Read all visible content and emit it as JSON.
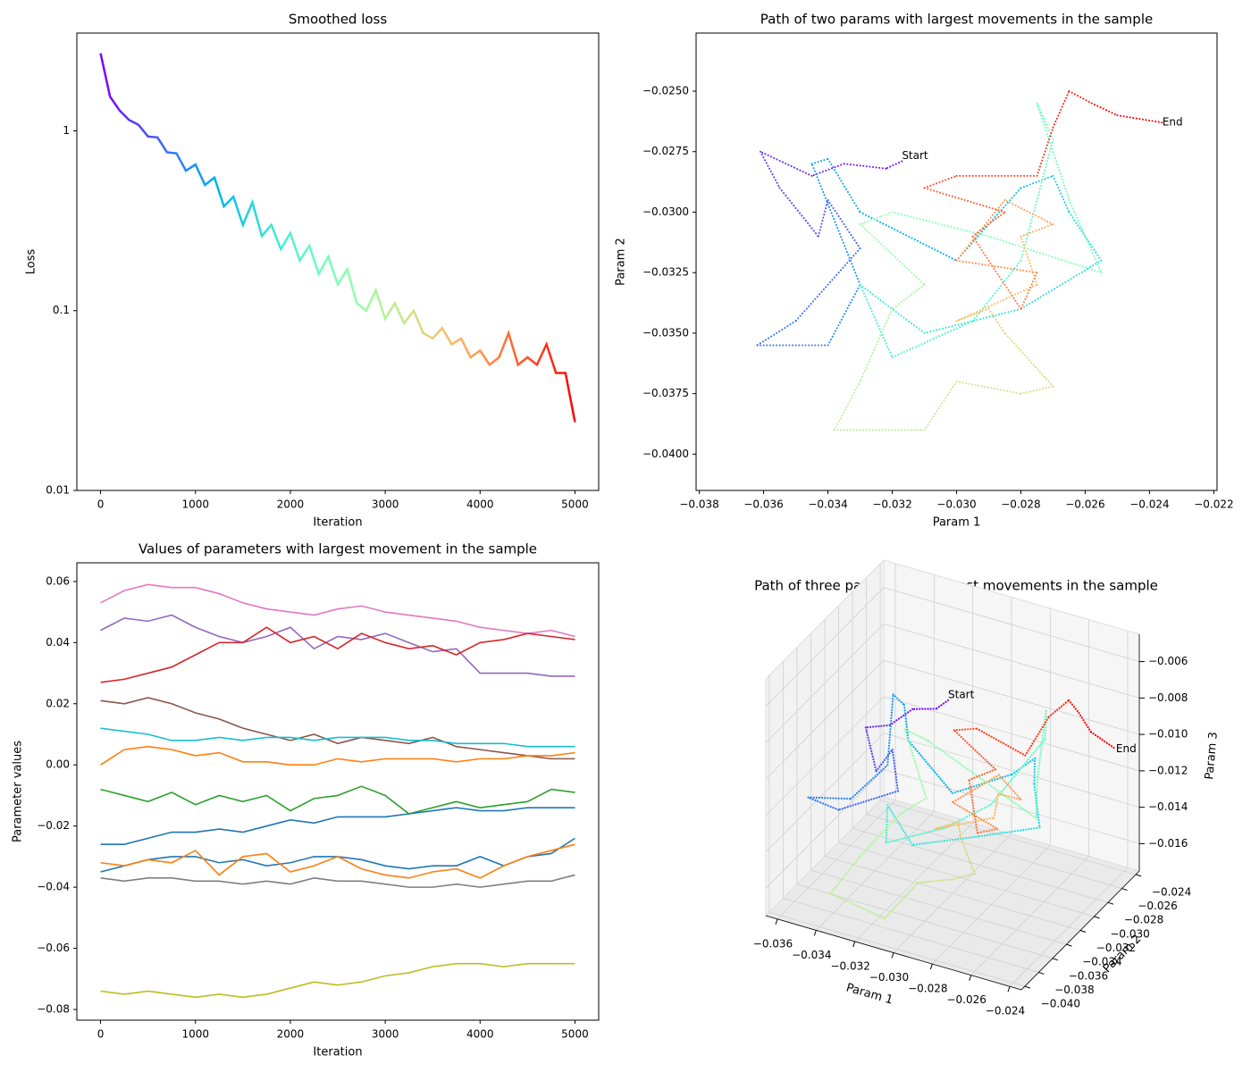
{
  "chart_data": [
    {
      "type": "line",
      "title": "Smoothed loss",
      "xlabel": "Iteration",
      "ylabel": "Loss",
      "yscale": "log",
      "colormap": "rainbow",
      "x": [
        0,
        100,
        200,
        300,
        400,
        500,
        600,
        700,
        800,
        900,
        1000,
        1100,
        1200,
        1300,
        1400,
        1500,
        1600,
        1700,
        1800,
        1900,
        2000,
        2100,
        2200,
        2300,
        2400,
        2500,
        2600,
        2700,
        2800,
        2900,
        3000,
        3100,
        3200,
        3300,
        3400,
        3500,
        3600,
        3700,
        3800,
        3900,
        4000,
        4100,
        4200,
        4300,
        4400,
        4500,
        4600,
        4700,
        4800,
        4900,
        5000
      ],
      "values": [
        2.7,
        1.55,
        1.3,
        1.15,
        1.08,
        0.93,
        0.92,
        0.76,
        0.75,
        0.6,
        0.65,
        0.5,
        0.55,
        0.38,
        0.43,
        0.3,
        0.4,
        0.26,
        0.3,
        0.22,
        0.27,
        0.19,
        0.23,
        0.16,
        0.2,
        0.14,
        0.17,
        0.11,
        0.1,
        0.13,
        0.09,
        0.11,
        0.085,
        0.1,
        0.075,
        0.07,
        0.08,
        0.065,
        0.07,
        0.055,
        0.06,
        0.05,
        0.055,
        0.075,
        0.05,
        0.055,
        0.05,
        0.065,
        0.045,
        0.045,
        0.024
      ],
      "xlim": [
        -250,
        5250
      ],
      "xticks": [
        0,
        1000,
        2000,
        3000,
        4000,
        5000
      ],
      "ylim": [
        0.01,
        3.5
      ],
      "yticks": [
        0.01,
        0.1,
        1
      ]
    },
    {
      "type": "path",
      "title": "Path of two params with largest movements in the sample",
      "xlabel": "Param 1",
      "ylabel": "Param 2",
      "colormap": "rainbow",
      "start_label": "Start",
      "end_label": "End",
      "x": [
        -0.0317,
        -0.0322,
        -0.0335,
        -0.0345,
        -0.0361,
        -0.0355,
        -0.0343,
        -0.034,
        -0.033,
        -0.035,
        -0.0362,
        -0.034,
        -0.033,
        -0.0345,
        -0.034,
        -0.033,
        -0.03,
        -0.028,
        -0.027,
        -0.0265,
        -0.0255,
        -0.028,
        -0.031,
        -0.033,
        -0.032,
        -0.0295,
        -0.028,
        -0.027,
        -0.0275,
        -0.0265,
        -0.0255,
        -0.029,
        -0.032,
        -0.033,
        -0.031,
        -0.032,
        -0.033,
        -0.0338,
        -0.031,
        -0.03,
        -0.028,
        -0.027,
        -0.0285,
        -0.029,
        -0.03,
        -0.0275,
        -0.028,
        -0.027,
        -0.0285,
        -0.03,
        -0.0275,
        -0.028,
        -0.0295,
        -0.0285,
        -0.031,
        -0.03,
        -0.0275,
        -0.027,
        -0.0265,
        -0.0258,
        -0.025,
        -0.0236
      ],
      "y": [
        -0.0279,
        -0.0282,
        -0.028,
        -0.0285,
        -0.0275,
        -0.029,
        -0.031,
        -0.0295,
        -0.0315,
        -0.0345,
        -0.0355,
        -0.0355,
        -0.033,
        -0.028,
        -0.0278,
        -0.03,
        -0.032,
        -0.029,
        -0.0285,
        -0.03,
        -0.032,
        -0.034,
        -0.035,
        -0.033,
        -0.036,
        -0.0345,
        -0.032,
        -0.027,
        -0.0255,
        -0.0295,
        -0.0325,
        -0.031,
        -0.03,
        -0.0305,
        -0.033,
        -0.034,
        -0.037,
        -0.039,
        -0.039,
        -0.037,
        -0.0375,
        -0.0372,
        -0.035,
        -0.034,
        -0.0345,
        -0.033,
        -0.031,
        -0.0305,
        -0.0295,
        -0.032,
        -0.0325,
        -0.034,
        -0.031,
        -0.03,
        -0.029,
        -0.0285,
        -0.0285,
        -0.0265,
        -0.025,
        -0.0255,
        -0.026,
        -0.0263
      ],
      "xlim": [
        -0.0381,
        -0.0219
      ],
      "xticks": [
        {
          "value": -0.038,
          "label": "−0.038"
        },
        {
          "value": -0.036,
          "label": "−0.036"
        },
        {
          "value": -0.034,
          "label": "−0.034"
        },
        {
          "value": -0.032,
          "label": "−0.032"
        },
        {
          "value": -0.03,
          "label": "−0.030"
        },
        {
          "value": -0.028,
          "label": "−0.028"
        },
        {
          "value": -0.026,
          "label": "−0.026"
        },
        {
          "value": -0.024,
          "label": "−0.024"
        },
        {
          "value": -0.022,
          "label": "−0.022"
        }
      ],
      "ylim": [
        -0.0415,
        -0.0226
      ],
      "yticks": [
        {
          "value": -0.04,
          "label": "−0.0400"
        },
        {
          "value": -0.0375,
          "label": "−0.0375"
        },
        {
          "value": -0.035,
          "label": "−0.0350"
        },
        {
          "value": -0.0325,
          "label": "−0.0325"
        },
        {
          "value": -0.03,
          "label": "−0.0300"
        },
        {
          "value": -0.0275,
          "label": "−0.0275"
        },
        {
          "value": -0.025,
          "label": "−0.0250"
        }
      ]
    },
    {
      "type": "multiline",
      "title": "Values of parameters with largest movement in the sample",
      "xlabel": "Iteration",
      "ylabel": "Parameter values",
      "x": [
        0,
        250,
        500,
        750,
        1000,
        1250,
        1500,
        1750,
        2000,
        2250,
        2500,
        2750,
        3000,
        3250,
        3500,
        3750,
        4000,
        4250,
        4500,
        4750,
        5000
      ],
      "series": [
        {
          "color": "#e377c2",
          "values": [
            0.053,
            0.057,
            0.059,
            0.058,
            0.058,
            0.056,
            0.053,
            0.051,
            0.05,
            0.049,
            0.051,
            0.052,
            0.05,
            0.049,
            0.048,
            0.047,
            0.045,
            0.044,
            0.043,
            0.044,
            0.042
          ]
        },
        {
          "color": "#9467bd",
          "values": [
            0.044,
            0.048,
            0.047,
            0.049,
            0.045,
            0.042,
            0.04,
            0.042,
            0.045,
            0.038,
            0.042,
            0.041,
            0.043,
            0.04,
            0.037,
            0.038,
            0.03,
            0.03,
            0.03,
            0.029,
            0.029
          ]
        },
        {
          "color": "#d62728",
          "values": [
            0.027,
            0.028,
            0.03,
            0.032,
            0.036,
            0.04,
            0.04,
            0.045,
            0.04,
            0.042,
            0.038,
            0.043,
            0.04,
            0.038,
            0.039,
            0.036,
            0.04,
            0.041,
            0.043,
            0.042,
            0.041
          ]
        },
        {
          "color": "#8c564b",
          "values": [
            0.021,
            0.02,
            0.022,
            0.02,
            0.017,
            0.015,
            0.012,
            0.01,
            0.008,
            0.01,
            0.007,
            0.009,
            0.008,
            0.007,
            0.009,
            0.006,
            0.005,
            0.004,
            0.003,
            0.002,
            0.002
          ]
        },
        {
          "color": "#17becf",
          "values": [
            0.012,
            0.011,
            0.01,
            0.008,
            0.008,
            0.009,
            0.008,
            0.009,
            0.009,
            0.008,
            0.009,
            0.009,
            0.009,
            0.008,
            0.008,
            0.007,
            0.007,
            0.007,
            0.006,
            0.006,
            0.006
          ]
        },
        {
          "color": "#ff7f0e",
          "values": [
            0.0,
            0.005,
            0.006,
            0.005,
            0.003,
            0.004,
            0.001,
            0.001,
            0.0,
            0.0,
            0.002,
            0.001,
            0.002,
            0.002,
            0.002,
            0.001,
            0.002,
            0.002,
            0.003,
            0.003,
            0.004
          ]
        },
        {
          "color": "#2ca02c",
          "values": [
            -0.008,
            -0.01,
            -0.012,
            -0.009,
            -0.013,
            -0.01,
            -0.012,
            -0.01,
            -0.015,
            -0.011,
            -0.01,
            -0.007,
            -0.01,
            -0.016,
            -0.014,
            -0.012,
            -0.014,
            -0.013,
            -0.012,
            -0.008,
            -0.009
          ]
        },
        {
          "color": "#1f77b4",
          "values": [
            -0.026,
            -0.026,
            -0.024,
            -0.022,
            -0.022,
            -0.021,
            -0.022,
            -0.02,
            -0.018,
            -0.019,
            -0.017,
            -0.017,
            -0.017,
            -0.016,
            -0.015,
            -0.014,
            -0.015,
            -0.015,
            -0.014,
            -0.014,
            -0.014
          ]
        },
        {
          "color": "#1f77b4",
          "values": [
            -0.035,
            -0.033,
            -0.031,
            -0.03,
            -0.03,
            -0.032,
            -0.031,
            -0.033,
            -0.032,
            -0.03,
            -0.03,
            -0.031,
            -0.033,
            -0.034,
            -0.033,
            -0.033,
            -0.03,
            -0.033,
            -0.03,
            -0.029,
            -0.024
          ]
        },
        {
          "color": "#ff7f0e",
          "values": [
            -0.032,
            -0.033,
            -0.031,
            -0.032,
            -0.028,
            -0.036,
            -0.03,
            -0.029,
            -0.035,
            -0.033,
            -0.03,
            -0.034,
            -0.036,
            -0.037,
            -0.035,
            -0.034,
            -0.037,
            -0.033,
            -0.03,
            -0.028,
            -0.026
          ]
        },
        {
          "color": "#7f7f7f",
          "values": [
            -0.037,
            -0.038,
            -0.037,
            -0.037,
            -0.038,
            -0.038,
            -0.039,
            -0.038,
            -0.039,
            -0.037,
            -0.038,
            -0.038,
            -0.039,
            -0.04,
            -0.04,
            -0.039,
            -0.04,
            -0.039,
            -0.038,
            -0.038,
            -0.036
          ]
        },
        {
          "color": "#bcbd22",
          "values": [
            -0.074,
            -0.075,
            -0.074,
            -0.075,
            -0.076,
            -0.075,
            -0.076,
            -0.075,
            -0.073,
            -0.071,
            -0.072,
            -0.071,
            -0.069,
            -0.068,
            -0.066,
            -0.065,
            -0.065,
            -0.066,
            -0.065,
            -0.065,
            -0.065
          ]
        }
      ],
      "xlim": [
        -250,
        5250
      ],
      "xticks": [
        0,
        1000,
        2000,
        3000,
        4000,
        5000
      ],
      "ylim": [
        -0.0835,
        0.0661
      ],
      "yticks": [
        {
          "value": -0.08,
          "label": "−0.08"
        },
        {
          "value": -0.06,
          "label": "−0.06"
        },
        {
          "value": -0.04,
          "label": "−0.04"
        },
        {
          "value": -0.02,
          "label": "−0.02"
        },
        {
          "value": 0,
          "label": "0.00"
        },
        0.02,
        0.04,
        0.06
      ]
    },
    {
      "type": "path3d",
      "title": "Path of three params with largest movements in the sample",
      "xlabel": "Param 1",
      "ylabel": "Param 2",
      "zlabel": "Param 3",
      "colormap": "rainbow",
      "grid": true,
      "start_label": "Start",
      "end_label": "End",
      "x": [
        -0.0317,
        -0.0322,
        -0.0335,
        -0.0345,
        -0.0361,
        -0.0355,
        -0.0343,
        -0.034,
        -0.033,
        -0.035,
        -0.0362,
        -0.034,
        -0.033,
        -0.0345,
        -0.034,
        -0.033,
        -0.03,
        -0.028,
        -0.027,
        -0.0265,
        -0.0255,
        -0.028,
        -0.031,
        -0.033,
        -0.032,
        -0.0295,
        -0.028,
        -0.027,
        -0.0275,
        -0.0265,
        -0.0255,
        -0.029,
        -0.032,
        -0.033,
        -0.031,
        -0.032,
        -0.033,
        -0.0338,
        -0.031,
        -0.03,
        -0.028,
        -0.027,
        -0.0285,
        -0.029,
        -0.03,
        -0.0275,
        -0.028,
        -0.027,
        -0.0285,
        -0.03,
        -0.0275,
        -0.028,
        -0.0295,
        -0.0285,
        -0.031,
        -0.03,
        -0.0275,
        -0.027,
        -0.0265,
        -0.0258,
        -0.025,
        -0.0236
      ],
      "y": [
        -0.0279,
        -0.0282,
        -0.028,
        -0.0285,
        -0.0275,
        -0.029,
        -0.031,
        -0.0295,
        -0.0315,
        -0.0345,
        -0.0355,
        -0.0355,
        -0.033,
        -0.028,
        -0.0278,
        -0.03,
        -0.032,
        -0.029,
        -0.0285,
        -0.03,
        -0.032,
        -0.034,
        -0.035,
        -0.033,
        -0.036,
        -0.0345,
        -0.032,
        -0.027,
        -0.0255,
        -0.0295,
        -0.0325,
        -0.031,
        -0.03,
        -0.0305,
        -0.033,
        -0.034,
        -0.037,
        -0.039,
        -0.039,
        -0.037,
        -0.0375,
        -0.0372,
        -0.035,
        -0.034,
        -0.0345,
        -0.033,
        -0.031,
        -0.0305,
        -0.0295,
        -0.032,
        -0.0325,
        -0.034,
        -0.031,
        -0.03,
        -0.029,
        -0.0285,
        -0.0285,
        -0.0265,
        -0.025,
        -0.0255,
        -0.026,
        -0.0263
      ],
      "z": [
        -0.009,
        -0.0095,
        -0.01,
        -0.011,
        -0.012,
        -0.0115,
        -0.0125,
        -0.0118,
        -0.013,
        -0.0135,
        -0.0128,
        -0.0122,
        -0.011,
        -0.0095,
        -0.01,
        -0.0108,
        -0.012,
        -0.0115,
        -0.0105,
        -0.0112,
        -0.0125,
        -0.013,
        -0.014,
        -0.0132,
        -0.0138,
        -0.0128,
        -0.012,
        -0.01,
        -0.0092,
        -0.011,
        -0.0118,
        -0.0112,
        -0.0105,
        -0.01,
        -0.0122,
        -0.013,
        -0.0145,
        -0.016,
        -0.0165,
        -0.015,
        -0.014,
        -0.0135,
        -0.0128,
        -0.0125,
        -0.013,
        -0.0122,
        -0.0118,
        -0.012,
        -0.0115,
        -0.0125,
        -0.013,
        -0.0128,
        -0.0115,
        -0.011,
        -0.01,
        -0.0098,
        -0.0105,
        -0.009,
        -0.0085,
        -0.0088,
        -0.0094,
        -0.0098
      ],
      "xlim": [
        -0.0366,
        -0.0234
      ],
      "xticks": [
        {
          "value": -0.036,
          "label": "−0.036"
        },
        {
          "value": -0.034,
          "label": "−0.034"
        },
        {
          "value": -0.032,
          "label": "−0.032"
        },
        {
          "value": -0.03,
          "label": "−0.030"
        },
        {
          "value": -0.028,
          "label": "−0.028"
        },
        {
          "value": -0.026,
          "label": "−0.026"
        },
        {
          "value": -0.024,
          "label": "−0.024"
        }
      ],
      "ylim": [
        -0.0405,
        -0.0235
      ],
      "yticks": [
        {
          "value": -0.04,
          "label": "−0.040"
        },
        {
          "value": -0.038,
          "label": "−0.038"
        },
        {
          "value": -0.036,
          "label": "−0.036"
        },
        {
          "value": -0.034,
          "label": "−0.034"
        },
        {
          "value": -0.032,
          "label": "−0.032"
        },
        {
          "value": -0.03,
          "label": "−0.030"
        },
        {
          "value": -0.028,
          "label": "−0.028"
        },
        {
          "value": -0.026,
          "label": "−0.026"
        },
        {
          "value": -0.024,
          "label": "−0.024"
        }
      ],
      "zlim": [
        -0.0175,
        -0.0045
      ],
      "zticks": [
        {
          "value": -0.016,
          "label": "−0.016"
        },
        {
          "value": -0.014,
          "label": "−0.014"
        },
        {
          "value": -0.012,
          "label": "−0.012"
        },
        {
          "value": -0.01,
          "label": "−0.010"
        },
        {
          "value": -0.008,
          "label": "−0.008"
        },
        {
          "value": -0.006,
          "label": "−0.006"
        }
      ]
    }
  ]
}
